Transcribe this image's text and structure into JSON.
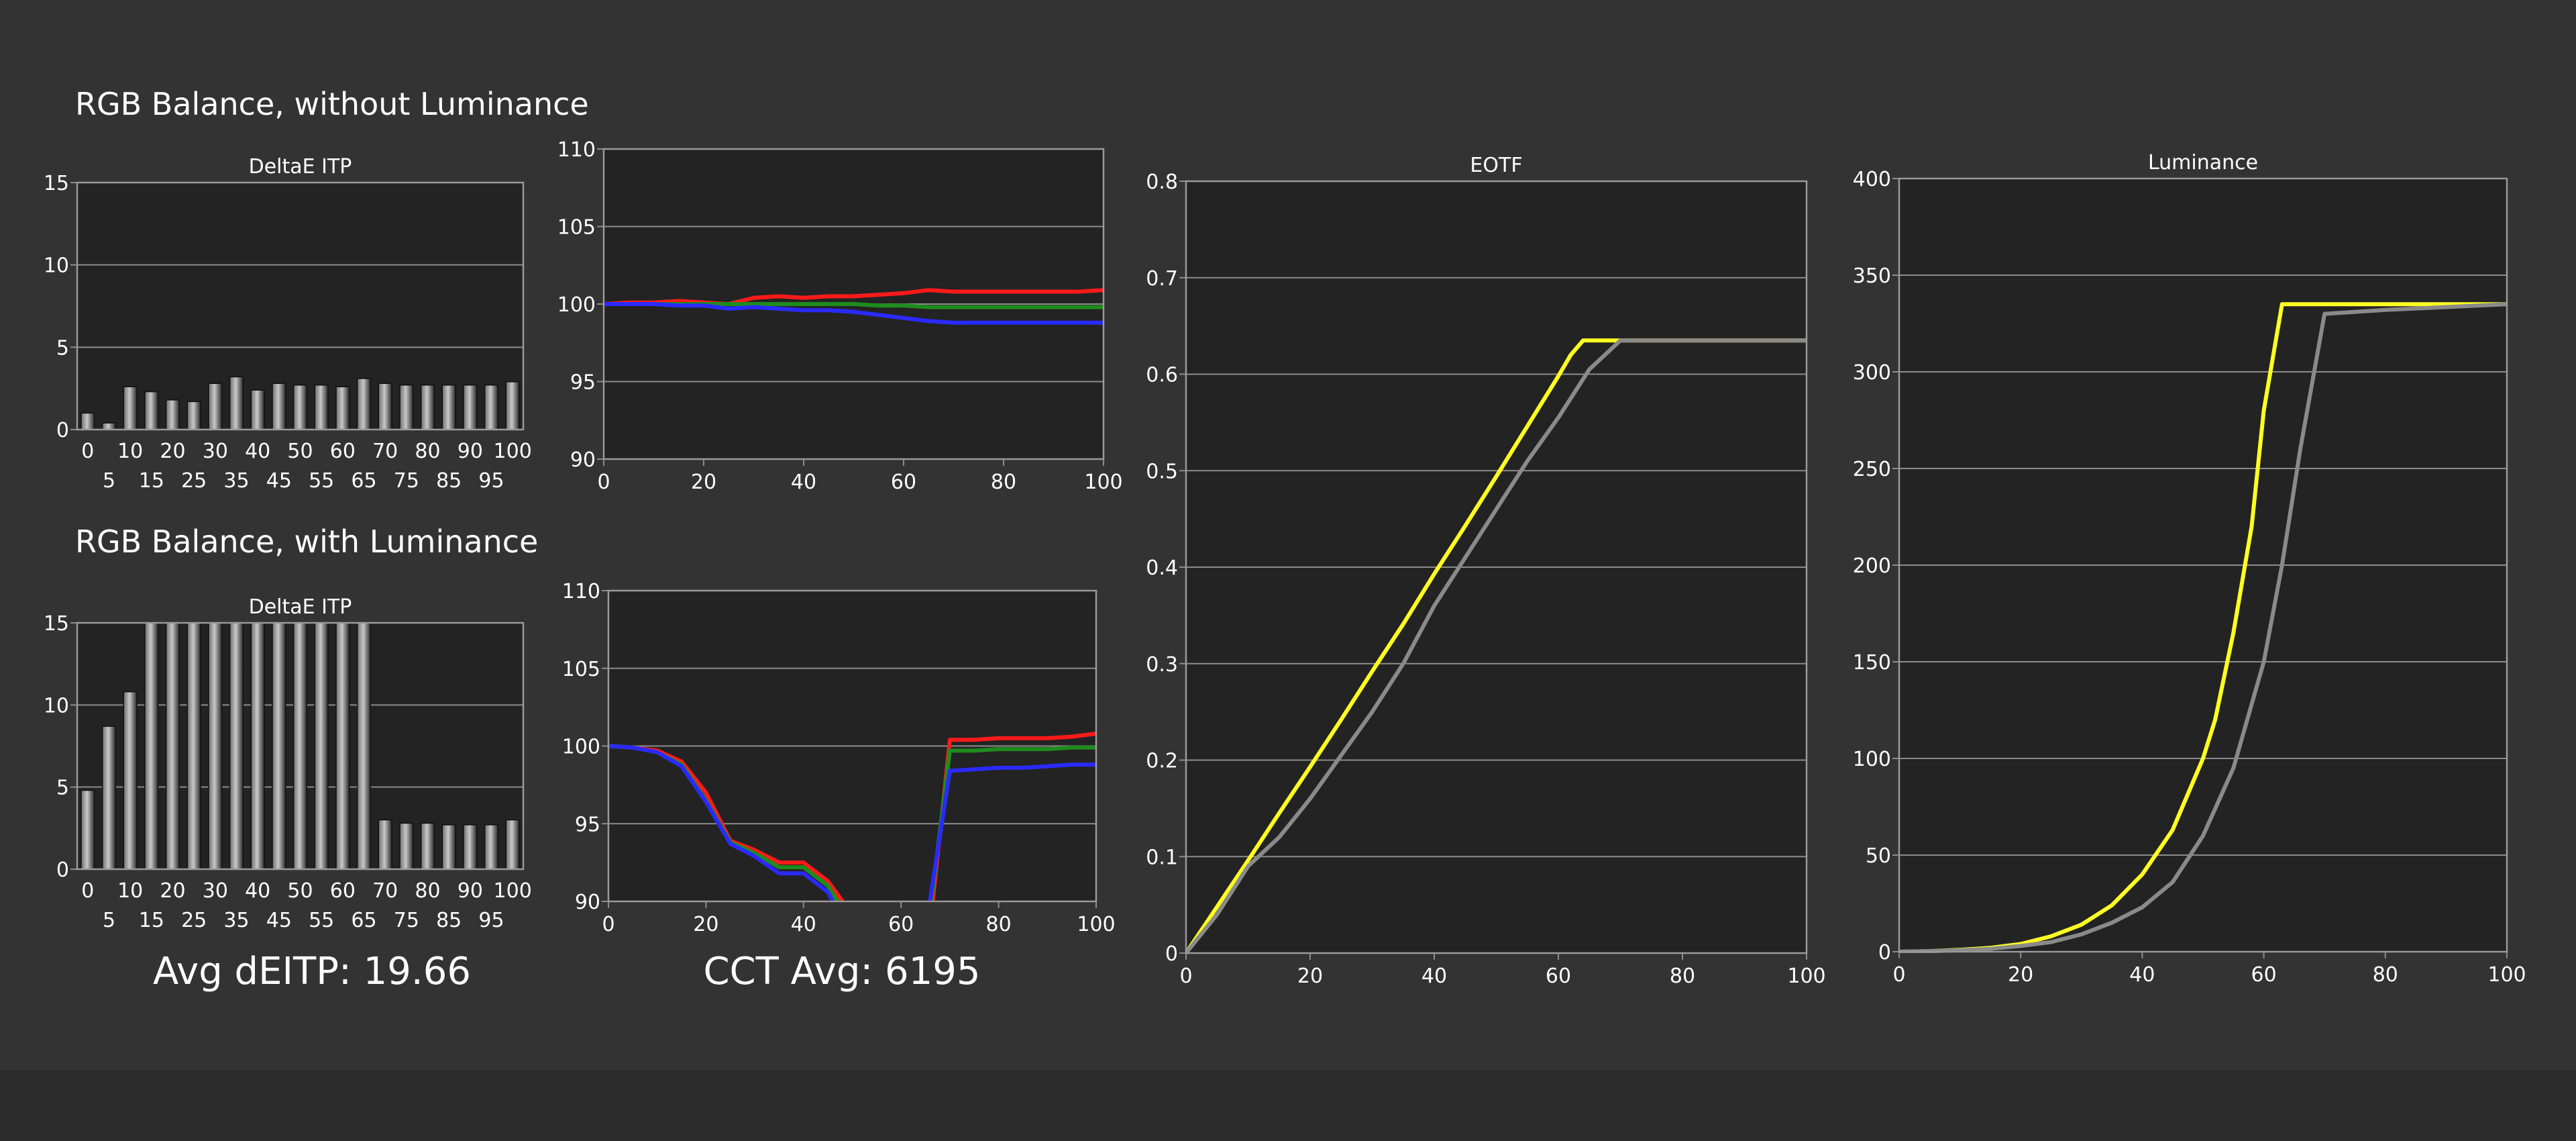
{
  "page": {
    "section1_title": "RGB Balance, without Luminance",
    "section2_title": "RGB Balance, with Luminance",
    "avg_deitp": "Avg dEITP: 19.66",
    "cct_avg": "CCT Avg: 6195",
    "colors": {
      "background": "#333333",
      "plot_bg": "#232323",
      "grid": "#8c8c8c",
      "red": "#ff1a1a",
      "green": "#1e8c1e",
      "blue": "#2a2aff",
      "yellow": "#ffff22",
      "gray": "#8a8a8a"
    }
  },
  "chart_data": [
    {
      "id": "deltae1",
      "type": "bar",
      "title": "DeltaE ITP",
      "ylim": [
        0,
        15
      ],
      "yticks": [
        0,
        5,
        10,
        15
      ],
      "categories": [
        "0",
        "5",
        "10",
        "15",
        "20",
        "25",
        "30",
        "35",
        "40",
        "45",
        "50",
        "55",
        "60",
        "65",
        "70",
        "75",
        "80",
        "85",
        "90",
        "95",
        "100"
      ],
      "values": [
        1.0,
        0.4,
        2.6,
        2.3,
        1.8,
        1.7,
        2.8,
        3.2,
        2.4,
        2.8,
        2.7,
        2.7,
        2.6,
        3.1,
        2.8,
        2.7,
        2.7,
        2.7,
        2.7,
        2.7,
        2.9
      ],
      "clip_top": false,
      "grid": true
    },
    {
      "id": "rgb1",
      "type": "line",
      "title": "",
      "xlim": [
        0,
        100
      ],
      "ylim": [
        90,
        110
      ],
      "xticks": [
        0,
        20,
        40,
        60,
        80,
        100
      ],
      "yticks": [
        90,
        95,
        100,
        105,
        110
      ],
      "grid": true,
      "series": [
        {
          "color": "red",
          "x": [
            0,
            5,
            10,
            15,
            20,
            25,
            30,
            35,
            40,
            45,
            50,
            55,
            60,
            65,
            70,
            75,
            80,
            85,
            90,
            95,
            100
          ],
          "y": [
            100,
            100.1,
            100.1,
            100.2,
            100.1,
            100,
            100.4,
            100.5,
            100.4,
            100.5,
            100.5,
            100.6,
            100.7,
            100.9,
            100.8,
            100.8,
            100.8,
            100.8,
            100.8,
            100.8,
            100.9
          ]
        },
        {
          "color": "green",
          "x": [
            0,
            5,
            10,
            15,
            20,
            25,
            30,
            35,
            40,
            45,
            50,
            55,
            60,
            65,
            70,
            75,
            80,
            85,
            90,
            95,
            100
          ],
          "y": [
            100,
            100,
            100,
            100,
            100,
            100,
            100,
            100,
            100,
            100,
            100,
            99.9,
            99.9,
            99.8,
            99.8,
            99.8,
            99.8,
            99.8,
            99.8,
            99.8,
            99.8
          ]
        },
        {
          "color": "blue",
          "x": [
            0,
            5,
            10,
            15,
            20,
            25,
            30,
            35,
            40,
            45,
            50,
            55,
            60,
            65,
            70,
            75,
            80,
            85,
            90,
            95,
            100
          ],
          "y": [
            100,
            100,
            100,
            99.9,
            99.9,
            99.7,
            99.8,
            99.7,
            99.6,
            99.6,
            99.5,
            99.3,
            99.1,
            98.9,
            98.8,
            98.8,
            98.8,
            98.8,
            98.8,
            98.8,
            98.8
          ]
        }
      ]
    },
    {
      "id": "eotf",
      "type": "line",
      "title": "EOTF",
      "xlim": [
        0,
        100
      ],
      "ylim": [
        0,
        0.8
      ],
      "xticks": [
        0,
        20,
        40,
        60,
        80,
        100
      ],
      "yticks": [
        0,
        0.1,
        0.2,
        0.3,
        0.4,
        0.5,
        0.6,
        0.7,
        0.8
      ],
      "grid": true,
      "series": [
        {
          "color": "yellow",
          "x": [
            0,
            5,
            10,
            15,
            20,
            25,
            30,
            35,
            40,
            45,
            50,
            55,
            60,
            62,
            64,
            70,
            100
          ],
          "y": [
            0,
            0.048,
            0.096,
            0.145,
            0.193,
            0.242,
            0.292,
            0.341,
            0.393,
            0.443,
            0.494,
            0.546,
            0.598,
            0.62,
            0.635,
            0.635,
            0.635
          ]
        },
        {
          "color": "gray",
          "x": [
            0,
            5,
            10,
            15,
            20,
            25,
            30,
            35,
            40,
            45,
            50,
            55,
            60,
            65,
            70,
            100
          ],
          "y": [
            0,
            0.04,
            0.09,
            0.12,
            0.16,
            0.205,
            0.25,
            0.3,
            0.36,
            0.41,
            0.46,
            0.51,
            0.555,
            0.605,
            0.635,
            0.635
          ]
        }
      ]
    },
    {
      "id": "deltae2",
      "type": "bar",
      "title": "DeltaE ITP",
      "ylim": [
        0,
        15
      ],
      "yticks": [
        0,
        5,
        10,
        15
      ],
      "categories": [
        "0",
        "5",
        "10",
        "15",
        "20",
        "25",
        "30",
        "35",
        "40",
        "45",
        "50",
        "55",
        "60",
        "65",
        "70",
        "75",
        "80",
        "85",
        "90",
        "95",
        "100"
      ],
      "values": [
        4.8,
        8.7,
        10.8,
        15,
        15,
        15,
        15,
        15,
        15,
        15,
        15,
        15,
        15,
        15,
        3.0,
        2.8,
        2.8,
        2.7,
        2.7,
        2.7,
        3.0
      ],
      "clip_top": true,
      "grid": true
    },
    {
      "id": "rgb2",
      "type": "line",
      "title": "",
      "xlim": [
        0,
        100
      ],
      "ylim": [
        90,
        110
      ],
      "xticks": [
        0,
        20,
        40,
        60,
        80,
        100
      ],
      "yticks": [
        90,
        95,
        100,
        105,
        110
      ],
      "grid": true,
      "series": [
        {
          "color": "red",
          "x": [
            0,
            5,
            10,
            15,
            20,
            25,
            30,
            35,
            40,
            45,
            48
          ],
          "y": [
            100,
            99.9,
            99.7,
            99.0,
            97,
            93.9,
            93.3,
            92.5,
            92.5,
            91.3,
            90
          ]
        },
        {
          "color": "green",
          "x": [
            0,
            5,
            10,
            15,
            20,
            25,
            30,
            35,
            40,
            45,
            47
          ],
          "y": [
            100,
            99.9,
            99.6,
            98.8,
            96.5,
            93.8,
            93.1,
            92.2,
            92.2,
            91,
            90
          ]
        },
        {
          "color": "blue",
          "x": [
            0,
            5,
            10,
            15,
            20,
            25,
            30,
            35,
            40,
            45,
            46
          ],
          "y": [
            100,
            99.9,
            99.6,
            98.7,
            96.4,
            93.7,
            92.9,
            91.8,
            91.8,
            90.6,
            90
          ]
        },
        {
          "color": "red",
          "x": [
            66.5,
            70,
            75,
            80,
            85,
            90,
            95,
            100
          ],
          "y": [
            90,
            100.4,
            100.4,
            100.5,
            100.5,
            100.5,
            100.6,
            100.8
          ]
        },
        {
          "color": "green",
          "x": [
            66.2,
            70,
            75,
            80,
            85,
            90,
            95,
            100
          ],
          "y": [
            90,
            99.7,
            99.7,
            99.8,
            99.8,
            99.8,
            99.9,
            99.9
          ]
        },
        {
          "color": "blue",
          "x": [
            65.9,
            70,
            75,
            80,
            85,
            90,
            95,
            100
          ],
          "y": [
            90,
            98.4,
            98.5,
            98.6,
            98.6,
            98.7,
            98.8,
            98.8
          ]
        }
      ]
    },
    {
      "id": "luminance",
      "type": "line",
      "title": "Luminance",
      "xlim": [
        0,
        100
      ],
      "ylim": [
        0,
        400
      ],
      "xticks": [
        0,
        20,
        40,
        60,
        80,
        100
      ],
      "yticks": [
        0,
        50,
        100,
        150,
        200,
        250,
        300,
        350,
        400
      ],
      "grid": true,
      "series": [
        {
          "color": "yellow",
          "x": [
            0,
            5,
            10,
            15,
            20,
            25,
            30,
            35,
            40,
            45,
            50,
            52,
            55,
            58,
            60,
            63,
            65,
            70,
            100
          ],
          "y": [
            0,
            0.3,
            1,
            2,
            4,
            8,
            14,
            24,
            40,
            63,
            100,
            120,
            165,
            220,
            280,
            335,
            335,
            335,
            335
          ]
        },
        {
          "color": "gray",
          "x": [
            0,
            5,
            10,
            15,
            20,
            25,
            30,
            35,
            40,
            45,
            50,
            55,
            60,
            63,
            66,
            70,
            80,
            100
          ],
          "y": [
            0,
            0.3,
            0.8,
            1.5,
            3,
            5,
            9,
            15,
            23,
            36,
            60,
            95,
            150,
            200,
            260,
            330,
            332,
            335
          ]
        }
      ]
    }
  ]
}
